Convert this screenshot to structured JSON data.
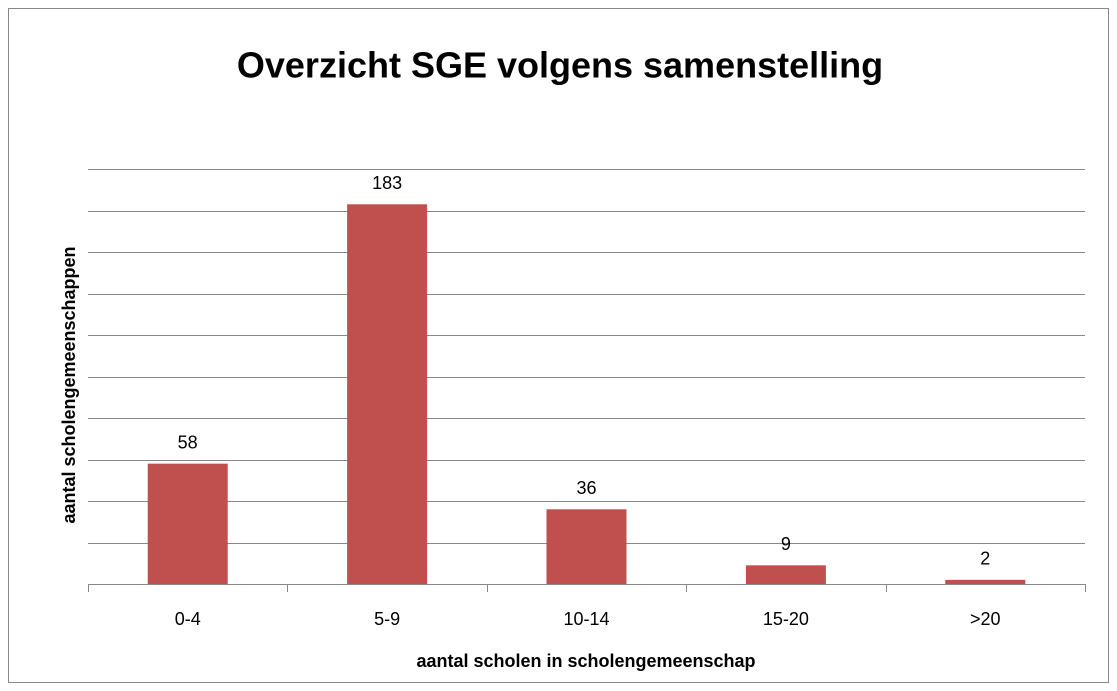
{
  "chart_data": {
    "type": "bar",
    "title": "Overzicht SGE volgens samenstelling",
    "x_label": "aantal scholen in scholengemeenschap",
    "y_label": "aantal scholengemeenschappen",
    "categories": [
      "0-4",
      "5-9",
      "10-14",
      "15-20",
      ">20"
    ],
    "values": [
      58,
      183,
      36,
      9,
      2
    ],
    "color": "#c0504d",
    "ylim": [
      0,
      200
    ],
    "yticks": [
      0,
      20,
      40,
      60,
      80,
      100,
      120,
      140,
      160,
      180,
      200
    ],
    "grid": true
  }
}
